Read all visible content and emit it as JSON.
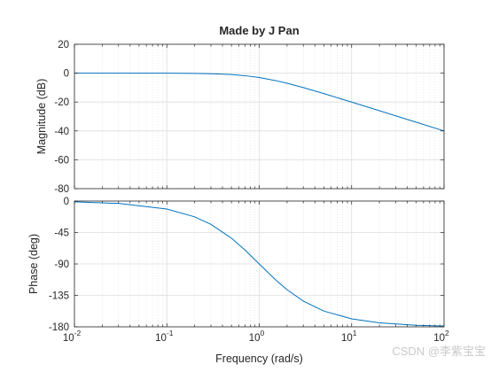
{
  "watermark": "CSDN @李紫宝宝",
  "colors": {
    "line": "#0072bd",
    "axis": "#262626",
    "grid": "#dcdcdc"
  },
  "chart_data": {
    "type": "line",
    "title": "Made by J Pan",
    "xlabel": "Frequency  (rad/s)",
    "x_scale": "log",
    "xlim": [
      0.01,
      100
    ],
    "x_ticks": [
      0.01,
      0.1,
      1,
      10,
      100
    ],
    "x_tick_labels": [
      {
        "base": "10",
        "exp": "-2"
      },
      {
        "base": "10",
        "exp": "-1"
      },
      {
        "base": "10",
        "exp": "0"
      },
      {
        "base": "10",
        "exp": "1"
      },
      {
        "base": "10",
        "exp": "2"
      }
    ],
    "grid": true,
    "panels": [
      {
        "ylabel": "Magnitude (dB)",
        "ylim": [
          -80,
          20
        ],
        "y_ticks": [
          20,
          0,
          -20,
          -40,
          -60,
          -80
        ],
        "y_tick_labels": [
          "20",
          "0",
          "-20",
          "-40",
          "-60",
          "-80"
        ],
        "series": [
          {
            "x": [
              0.01,
              0.03,
              0.1,
              0.2,
              0.3,
              0.5,
              0.7,
              1,
              1.5,
              2,
              3,
              5,
              10,
              20,
              50,
              100
            ],
            "values": [
              0,
              0,
              -0.04,
              -0.17,
              -0.37,
              -0.97,
              -1.74,
              -3.01,
              -5.12,
              -6.99,
              -10.0,
              -14.15,
              -20.04,
              -26.03,
              -33.98,
              -40.0
            ]
          }
        ]
      },
      {
        "ylabel": "Phase (deg)",
        "ylim": [
          -180,
          0
        ],
        "y_ticks": [
          0,
          -45,
          -90,
          -135,
          -180
        ],
        "y_tick_labels": [
          "0",
          "-45",
          "-90",
          "-135",
          "-180"
        ],
        "series": [
          {
            "x": [
              0.01,
              0.03,
              0.1,
              0.2,
              0.3,
              0.5,
              0.7,
              1,
              1.5,
              2,
              3,
              5,
              10,
              20,
              50,
              100
            ],
            "values": [
              -1.1,
              -3.4,
              -11.4,
              -22.6,
              -33.4,
              -53.1,
              -70.0,
              -90.0,
              -112.6,
              -126.9,
              -143.1,
              -157.4,
              -168.6,
              -174.3,
              -177.7,
              -178.9
            ]
          }
        ]
      }
    ]
  }
}
